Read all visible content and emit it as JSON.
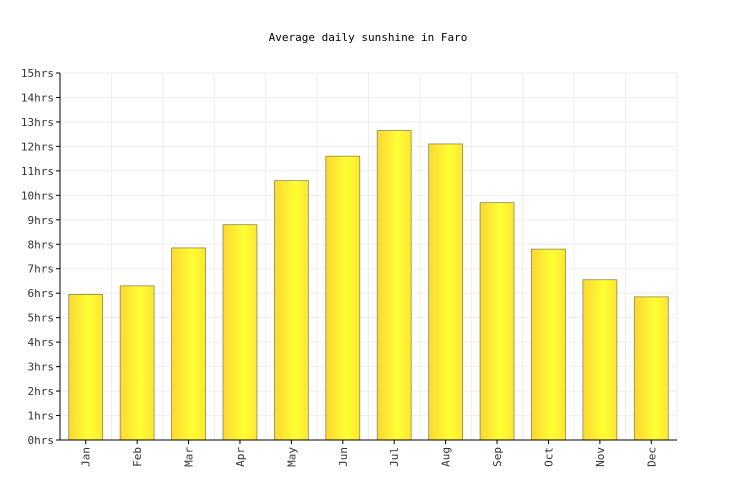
{
  "chart_data": {
    "type": "bar",
    "title": "Average daily sunshine in Faro",
    "xlabel": "",
    "ylabel": "",
    "categories": [
      "Jan",
      "Feb",
      "Mar",
      "Apr",
      "May",
      "Jun",
      "Jul",
      "Aug",
      "Sep",
      "Oct",
      "Nov",
      "Dec"
    ],
    "values": [
      5.95,
      6.3,
      7.85,
      8.8,
      10.6,
      11.6,
      12.65,
      12.1,
      9.7,
      7.8,
      6.55,
      5.85
    ],
    "ylim": [
      0,
      15
    ],
    "y_ticks": [
      0,
      1,
      2,
      3,
      4,
      5,
      6,
      7,
      8,
      9,
      10,
      11,
      12,
      13,
      14,
      15
    ],
    "y_tick_suffix": "hrs",
    "grid": true,
    "bar_colors": {
      "light": "#ffff33",
      "dark": "#ffd633",
      "outline": "#8a8a4a"
    }
  }
}
